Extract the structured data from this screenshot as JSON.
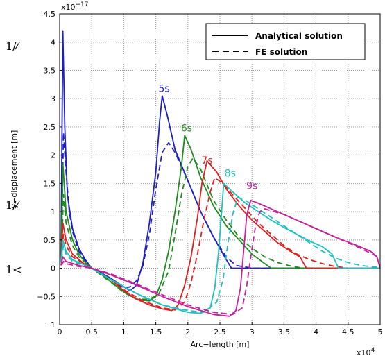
{
  "chart_data": {
    "type": "line",
    "xlabel": "Arc−length [m]",
    "ylabel": "y−displacement [m]",
    "x_exponent_label": "x10",
    "x_exponent_power": "4",
    "y_exponent_label": "x10",
    "y_exponent_power": "−17",
    "xlim": [
      0,
      5
    ],
    "ylim": [
      -1,
      4.5
    ],
    "x_ticks": [
      "0",
      "0.5",
      "1",
      "1.5",
      "2",
      "2.5",
      "3",
      "3.5",
      "4",
      "4.5",
      "5"
    ],
    "y_ticks": [
      "−1",
      "−0.5",
      "0",
      "0.5",
      "1",
      "1.5",
      "2",
      "2.5",
      "3",
      "3.5",
      "4",
      "4.5"
    ],
    "grid": true,
    "legend_position": "top-right",
    "legend": [
      {
        "label": "Analytical solution",
        "style": "solid"
      },
      {
        "label": "FE solution",
        "style": "dashed"
      }
    ],
    "margin_notes": [
      "1/⁄",
      "1/⁄",
      "1<"
    ],
    "series": [
      {
        "name": "5s",
        "color": "#1f1fbf",
        "label_pos": [
          1.63,
          3.12
        ],
        "analytical": [
          [
            0.02,
            0.1
          ],
          [
            0.05,
            4.2
          ],
          [
            0.08,
            2.5
          ],
          [
            0.12,
            1.3
          ],
          [
            0.2,
            0.7
          ],
          [
            0.3,
            0.35
          ],
          [
            0.4,
            0.15
          ],
          [
            0.5,
            0.0
          ],
          [
            0.6,
            -0.05
          ],
          [
            0.8,
            -0.18
          ],
          [
            1.0,
            -0.33
          ],
          [
            1.1,
            -0.4
          ],
          [
            1.2,
            -0.3
          ],
          [
            1.3,
            0.1
          ],
          [
            1.4,
            0.8
          ],
          [
            1.5,
            1.7
          ],
          [
            1.56,
            2.6
          ],
          [
            1.6,
            3.05
          ],
          [
            1.68,
            2.7
          ],
          [
            1.8,
            2.1
          ],
          [
            2.0,
            1.55
          ],
          [
            2.2,
            1.0
          ],
          [
            2.4,
            0.55
          ],
          [
            2.6,
            0.15
          ],
          [
            2.68,
            0.0
          ],
          [
            5.0,
            0.0
          ]
        ],
        "fe": [
          [
            0.03,
            0.5
          ],
          [
            0.06,
            2.4
          ],
          [
            0.1,
            1.7
          ],
          [
            0.15,
            1.0
          ],
          [
            0.2,
            0.65
          ],
          [
            0.3,
            0.3
          ],
          [
            0.4,
            0.12
          ],
          [
            0.5,
            0.0
          ],
          [
            0.7,
            -0.12
          ],
          [
            0.9,
            -0.28
          ],
          [
            1.0,
            -0.35
          ],
          [
            1.1,
            -0.33
          ],
          [
            1.2,
            -0.22
          ],
          [
            1.3,
            0.05
          ],
          [
            1.4,
            0.6
          ],
          [
            1.5,
            1.4
          ],
          [
            1.6,
            2.05
          ],
          [
            1.7,
            2.22
          ],
          [
            1.8,
            2.05
          ],
          [
            2.0,
            1.55
          ],
          [
            2.2,
            1.0
          ],
          [
            2.4,
            0.55
          ],
          [
            2.6,
            0.2
          ],
          [
            2.75,
            0.05
          ],
          [
            3.0,
            0.0
          ],
          [
            5.0,
            0.0
          ]
        ]
      },
      {
        "name": "6s",
        "color": "#1f8a1f",
        "label_pos": [
          1.98,
          2.42
        ],
        "analytical": [
          [
            0.02,
            0.1
          ],
          [
            0.05,
            1.85
          ],
          [
            0.1,
            1.0
          ],
          [
            0.2,
            0.5
          ],
          [
            0.3,
            0.25
          ],
          [
            0.4,
            0.1
          ],
          [
            0.5,
            0.0
          ],
          [
            0.7,
            -0.15
          ],
          [
            1.0,
            -0.42
          ],
          [
            1.2,
            -0.55
          ],
          [
            1.4,
            -0.58
          ],
          [
            1.5,
            -0.5
          ],
          [
            1.6,
            -0.2
          ],
          [
            1.7,
            0.3
          ],
          [
            1.8,
            1.0
          ],
          [
            1.9,
            1.8
          ],
          [
            1.95,
            2.35
          ],
          [
            2.05,
            2.1
          ],
          [
            2.2,
            1.6
          ],
          [
            2.4,
            1.1
          ],
          [
            2.6,
            0.75
          ],
          [
            2.8,
            0.5
          ],
          [
            3.0,
            0.25
          ],
          [
            3.2,
            0.08
          ],
          [
            3.3,
            0.0
          ],
          [
            5.0,
            0.0
          ]
        ],
        "fe": [
          [
            0.03,
            0.3
          ],
          [
            0.06,
            1.3
          ],
          [
            0.1,
            0.8
          ],
          [
            0.2,
            0.4
          ],
          [
            0.3,
            0.2
          ],
          [
            0.5,
            0.0
          ],
          [
            0.8,
            -0.25
          ],
          [
            1.0,
            -0.43
          ],
          [
            1.2,
            -0.55
          ],
          [
            1.4,
            -0.55
          ],
          [
            1.55,
            -0.45
          ],
          [
            1.7,
            -0.05
          ],
          [
            1.8,
            0.6
          ],
          [
            1.9,
            1.3
          ],
          [
            2.0,
            1.8
          ],
          [
            2.08,
            1.95
          ],
          [
            2.2,
            1.75
          ],
          [
            2.4,
            1.2
          ],
          [
            2.6,
            0.85
          ],
          [
            2.8,
            0.55
          ],
          [
            3.0,
            0.35
          ],
          [
            3.2,
            0.2
          ],
          [
            3.4,
            0.1
          ],
          [
            3.6,
            0.04
          ],
          [
            3.8,
            0.0
          ],
          [
            5.0,
            0.0
          ]
        ]
      },
      {
        "name": "7s",
        "color": "#dd1f1f",
        "label_pos": [
          2.3,
          1.85
        ],
        "analytical": [
          [
            0.02,
            0.1
          ],
          [
            0.05,
            0.8
          ],
          [
            0.1,
            0.5
          ],
          [
            0.2,
            0.25
          ],
          [
            0.4,
            0.06
          ],
          [
            0.5,
            0.0
          ],
          [
            0.8,
            -0.2
          ],
          [
            1.0,
            -0.4
          ],
          [
            1.2,
            -0.55
          ],
          [
            1.4,
            -0.65
          ],
          [
            1.6,
            -0.72
          ],
          [
            1.75,
            -0.75
          ],
          [
            1.85,
            -0.65
          ],
          [
            1.95,
            -0.3
          ],
          [
            2.05,
            0.2
          ],
          [
            2.15,
            0.9
          ],
          [
            2.22,
            1.5
          ],
          [
            2.3,
            1.9
          ],
          [
            2.45,
            1.7
          ],
          [
            2.6,
            1.4
          ],
          [
            2.8,
            1.1
          ],
          [
            3.0,
            0.85
          ],
          [
            3.2,
            0.65
          ],
          [
            3.4,
            0.45
          ],
          [
            3.6,
            0.3
          ],
          [
            3.75,
            0.2
          ],
          [
            3.85,
            0.0
          ],
          [
            5.0,
            0.0
          ]
        ],
        "fe": [
          [
            0.03,
            0.2
          ],
          [
            0.06,
            0.6
          ],
          [
            0.1,
            0.4
          ],
          [
            0.2,
            0.2
          ],
          [
            0.5,
            0.0
          ],
          [
            0.8,
            -0.2
          ],
          [
            1.0,
            -0.38
          ],
          [
            1.3,
            -0.58
          ],
          [
            1.6,
            -0.7
          ],
          [
            1.8,
            -0.74
          ],
          [
            1.95,
            -0.6
          ],
          [
            2.05,
            -0.25
          ],
          [
            2.15,
            0.25
          ],
          [
            2.25,
            0.85
          ],
          [
            2.35,
            1.35
          ],
          [
            2.42,
            1.6
          ],
          [
            2.55,
            1.5
          ],
          [
            2.7,
            1.3
          ],
          [
            2.9,
            1.05
          ],
          [
            3.1,
            0.8
          ],
          [
            3.3,
            0.6
          ],
          [
            3.5,
            0.4
          ],
          [
            3.7,
            0.25
          ],
          [
            3.9,
            0.15
          ],
          [
            4.1,
            0.08
          ],
          [
            4.3,
            0.03
          ],
          [
            4.5,
            0.0
          ],
          [
            5.0,
            0.0
          ]
        ]
      },
      {
        "name": "8s",
        "color": "#1fbfbf",
        "label_pos": [
          2.66,
          1.62
        ],
        "analytical": [
          [
            0.02,
            0.1
          ],
          [
            0.05,
            0.5
          ],
          [
            0.1,
            0.3
          ],
          [
            0.2,
            0.15
          ],
          [
            0.5,
            0.0
          ],
          [
            0.8,
            -0.2
          ],
          [
            1.2,
            -0.45
          ],
          [
            1.6,
            -0.65
          ],
          [
            2.0,
            -0.78
          ],
          [
            2.2,
            -0.8
          ],
          [
            2.35,
            -0.7
          ],
          [
            2.42,
            -0.35
          ],
          [
            2.48,
            0.3
          ],
          [
            2.52,
            0.9
          ],
          [
            2.56,
            1.5
          ],
          [
            2.7,
            1.35
          ],
          [
            2.9,
            1.15
          ],
          [
            3.1,
            1.0
          ],
          [
            3.3,
            0.85
          ],
          [
            3.5,
            0.72
          ],
          [
            3.7,
            0.6
          ],
          [
            3.9,
            0.48
          ],
          [
            4.1,
            0.38
          ],
          [
            4.25,
            0.25
          ],
          [
            4.35,
            0.0
          ],
          [
            5.0,
            0.0
          ]
        ],
        "fe": [
          [
            0.03,
            0.15
          ],
          [
            0.06,
            0.4
          ],
          [
            0.1,
            0.25
          ],
          [
            0.2,
            0.12
          ],
          [
            0.5,
            0.0
          ],
          [
            0.8,
            -0.2
          ],
          [
            1.2,
            -0.45
          ],
          [
            1.6,
            -0.65
          ],
          [
            2.0,
            -0.75
          ],
          [
            2.25,
            -0.78
          ],
          [
            2.45,
            -0.6
          ],
          [
            2.55,
            -0.2
          ],
          [
            2.62,
            0.4
          ],
          [
            2.7,
            0.95
          ],
          [
            2.78,
            1.25
          ],
          [
            2.9,
            1.2
          ],
          [
            3.1,
            1.05
          ],
          [
            3.3,
            0.9
          ],
          [
            3.5,
            0.75
          ],
          [
            3.7,
            0.6
          ],
          [
            3.9,
            0.45
          ],
          [
            4.1,
            0.3
          ],
          [
            4.3,
            0.18
          ],
          [
            4.5,
            0.1
          ],
          [
            4.7,
            0.05
          ],
          [
            4.9,
            0.02
          ],
          [
            5.0,
            0.02
          ]
        ]
      },
      {
        "name": "9s",
        "color": "#c21f9a",
        "label_pos": [
          3.0,
          1.4
        ],
        "analytical": [
          [
            0.02,
            0.05
          ],
          [
            0.05,
            0.2
          ],
          [
            0.1,
            0.12
          ],
          [
            0.3,
            0.05
          ],
          [
            0.5,
            0.0
          ],
          [
            0.8,
            -0.12
          ],
          [
            1.2,
            -0.3
          ],
          [
            1.6,
            -0.5
          ],
          [
            2.0,
            -0.68
          ],
          [
            2.4,
            -0.82
          ],
          [
            2.65,
            -0.85
          ],
          [
            2.75,
            -0.75
          ],
          [
            2.82,
            -0.35
          ],
          [
            2.87,
            0.3
          ],
          [
            2.92,
            0.95
          ],
          [
            2.98,
            1.2
          ],
          [
            3.1,
            1.15
          ],
          [
            3.4,
            1.0
          ],
          [
            3.7,
            0.85
          ],
          [
            4.0,
            0.7
          ],
          [
            4.3,
            0.55
          ],
          [
            4.6,
            0.42
          ],
          [
            4.85,
            0.3
          ],
          [
            4.95,
            0.2
          ],
          [
            5.0,
            0.0
          ]
        ],
        "fe": [
          [
            0.03,
            0.05
          ],
          [
            0.06,
            0.12
          ],
          [
            0.1,
            0.08
          ],
          [
            0.3,
            0.03
          ],
          [
            0.5,
            0.0
          ],
          [
            0.8,
            -0.1
          ],
          [
            1.2,
            -0.28
          ],
          [
            1.6,
            -0.47
          ],
          [
            2.0,
            -0.65
          ],
          [
            2.4,
            -0.78
          ],
          [
            2.7,
            -0.82
          ],
          [
            2.85,
            -0.7
          ],
          [
            2.92,
            -0.3
          ],
          [
            2.98,
            0.2
          ],
          [
            3.05,
            0.7
          ],
          [
            3.12,
            1.0
          ],
          [
            3.2,
            1.05
          ],
          [
            3.5,
            0.95
          ],
          [
            3.8,
            0.8
          ],
          [
            4.1,
            0.65
          ],
          [
            4.4,
            0.5
          ],
          [
            4.7,
            0.35
          ],
          [
            5.0,
            0.18
          ]
        ]
      }
    ]
  }
}
